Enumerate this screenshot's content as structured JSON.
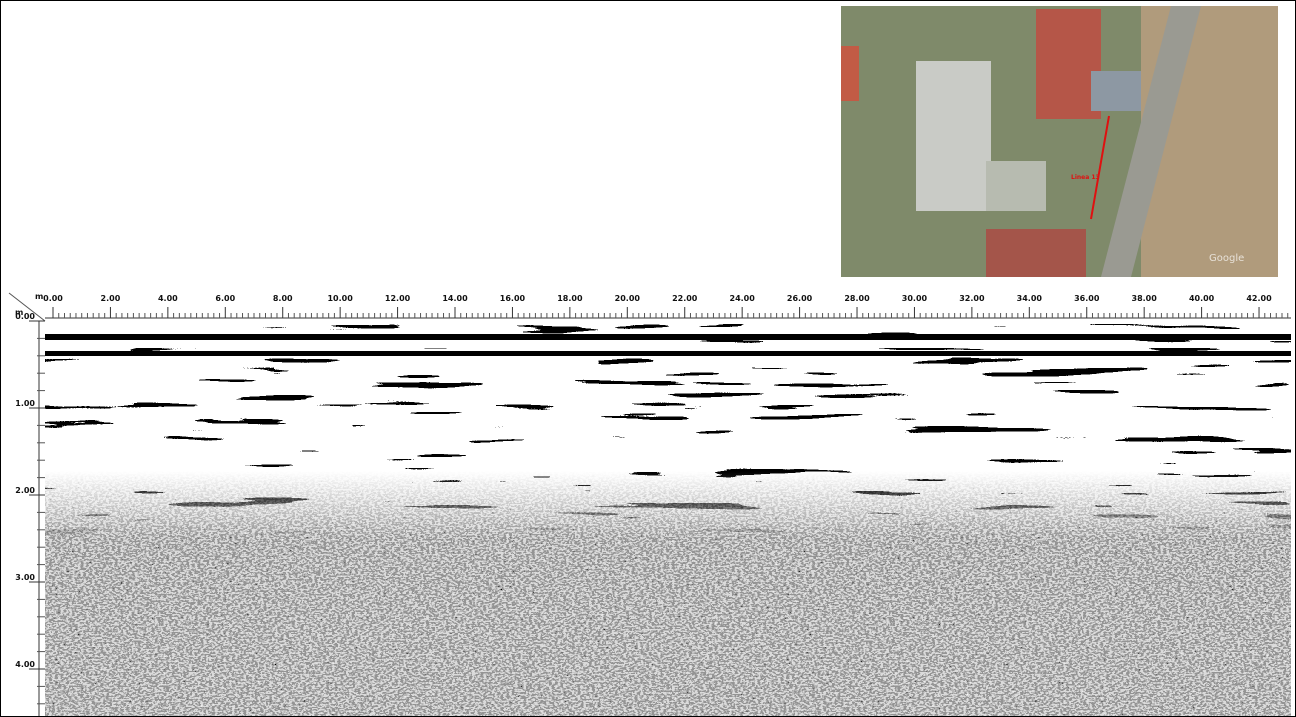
{
  "radargram": {
    "x_unit": "m",
    "x_ticks": [
      "0.00",
      "2.00",
      "4.00",
      "6.00",
      "8.00",
      "10.00",
      "12.00",
      "14.00",
      "16.00",
      "18.00",
      "20.00",
      "22.00",
      "24.00",
      "26.00",
      "28.00",
      "30.00",
      "32.00",
      "34.00",
      "36.00",
      "38.00",
      "40.00",
      "42.00"
    ],
    "y_unit": "m",
    "y_ticks": [
      "0.00",
      "1.00",
      "2.00",
      "3.00",
      "4.00"
    ]
  },
  "map": {
    "line_label": "Linea 13",
    "watermark": "Google"
  }
}
